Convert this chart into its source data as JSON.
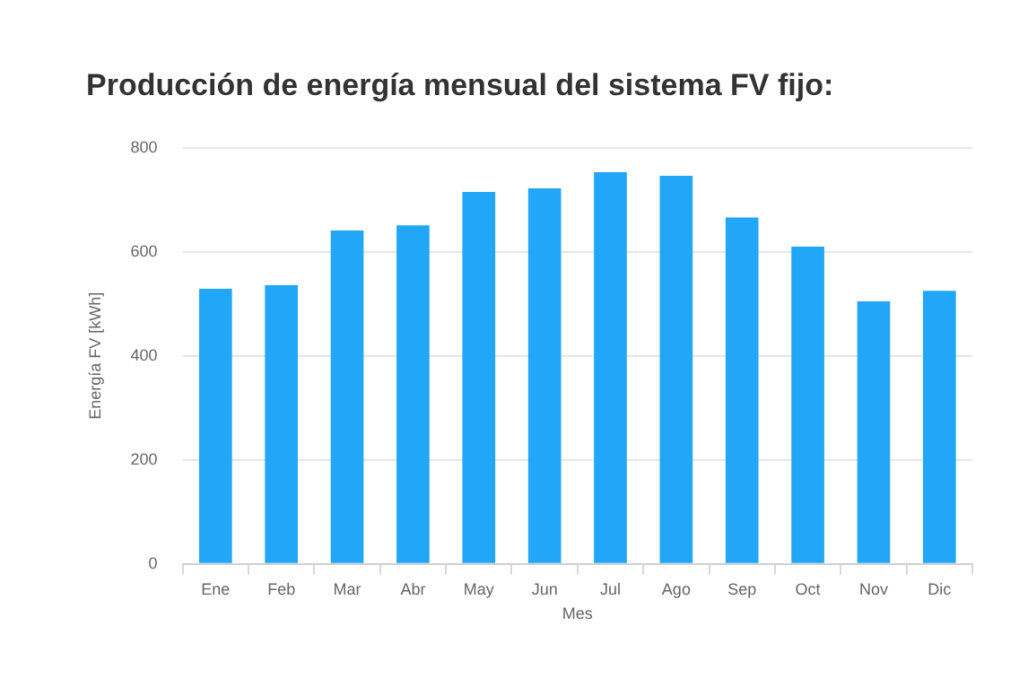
{
  "chart_data": {
    "type": "bar",
    "title": "Producción de energía mensual del sistema FV fijo:",
    "xlabel": "Mes",
    "ylabel": "Energía FV [kWh]",
    "categories": [
      "Ene",
      "Feb",
      "Mar",
      "Abr",
      "May",
      "Jun",
      "Jul",
      "Ago",
      "Sep",
      "Oct",
      "Nov",
      "Dic"
    ],
    "values": [
      529,
      536,
      641,
      651,
      715,
      722,
      753,
      746,
      666,
      610,
      505,
      525
    ],
    "color": "#22a7f8",
    "ylim": [
      0,
      800
    ],
    "yticks": [
      0,
      200,
      400,
      600,
      800
    ],
    "grid": "y",
    "legend": false
  }
}
